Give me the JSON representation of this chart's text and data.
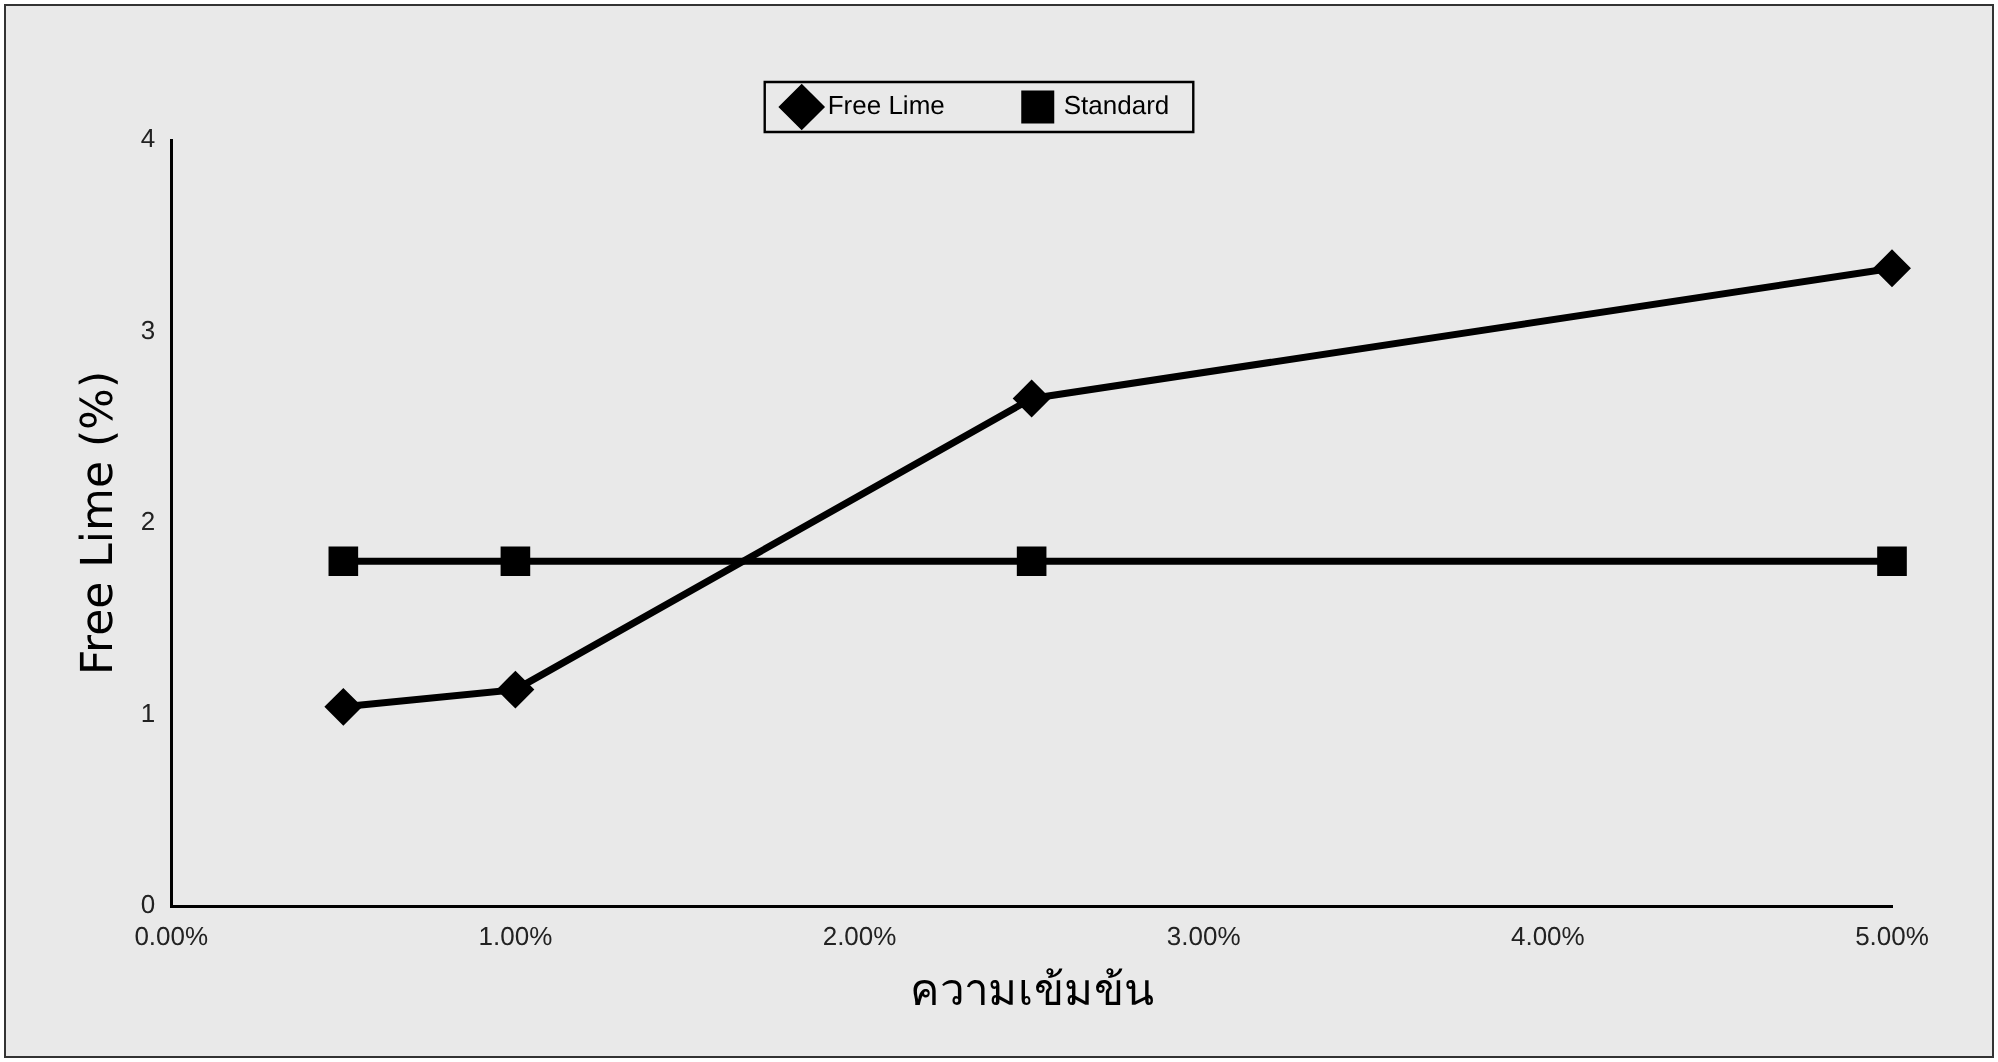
{
  "chart_data": {
    "type": "line",
    "xlabel": "ความเข้มข้น",
    "ylabel": "Free Lime (%)",
    "x": [
      0.5,
      1,
      2.5,
      5
    ],
    "xlim": [
      0,
      5
    ],
    "xticks": [
      {
        "value": 0,
        "label": "0.00%"
      },
      {
        "value": 1,
        "label": "1.00%"
      },
      {
        "value": 2,
        "label": "2.00%"
      },
      {
        "value": 3,
        "label": "3.00%"
      },
      {
        "value": 4,
        "label": "4.00%"
      },
      {
        "value": 5,
        "label": "5.00%"
      }
    ],
    "ylim": [
      0,
      4
    ],
    "yticks": [
      0,
      1,
      2,
      3,
      4
    ],
    "grid": false,
    "legend": "top",
    "line_style": "solid",
    "series": [
      {
        "name": "Free Lime",
        "color": "#000000",
        "marker": "diamond",
        "values": [
          1.04,
          1.13,
          2.65,
          3.33
        ]
      },
      {
        "name": "Standard",
        "color": "#000000",
        "marker": "square",
        "values": [
          1.8,
          1.8,
          1.8,
          1.8
        ]
      }
    ]
  }
}
